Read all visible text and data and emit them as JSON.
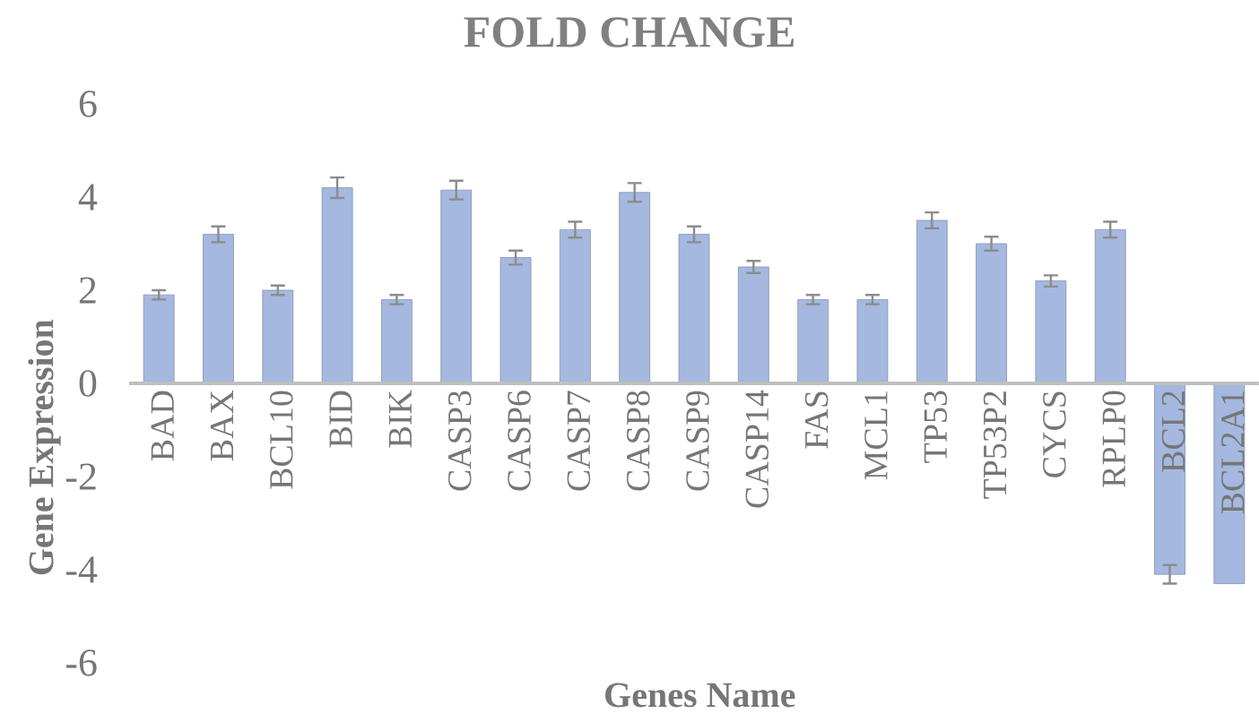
{
  "chart_data": {
    "type": "bar",
    "title": "FOLD CHANGE",
    "xlabel": "Genes Name",
    "ylabel": "Gene Expression",
    "categories": [
      "BAD",
      "BAX",
      "BCL10",
      "BID",
      "BIK",
      "CASP3",
      "CASP6",
      "CASP7",
      "CASP8",
      "CASP9",
      "CASP14",
      "FAS",
      "MCL1",
      "TP53",
      "TP53P2",
      "CYCS",
      "RPLP0",
      "BCL2",
      "BCL2A1"
    ],
    "values": [
      1.9,
      3.2,
      2.0,
      4.2,
      1.8,
      4.15,
      2.7,
      3.3,
      4.1,
      3.2,
      2.5,
      1.8,
      1.8,
      3.5,
      3.0,
      2.2,
      3.3,
      -4.1,
      -4.3
    ],
    "errors": [
      0.1,
      0.17,
      0.1,
      0.22,
      0.1,
      0.2,
      0.15,
      0.17,
      0.2,
      0.17,
      0.13,
      0.1,
      0.1,
      0.17,
      0.15,
      0.12,
      0.17,
      0.2,
      null
    ],
    "color": "#a5b8df",
    "ylim": [
      -6,
      6
    ],
    "yticks": [
      -6,
      -4,
      -2,
      0,
      2,
      4,
      6
    ],
    "grid": false
  }
}
